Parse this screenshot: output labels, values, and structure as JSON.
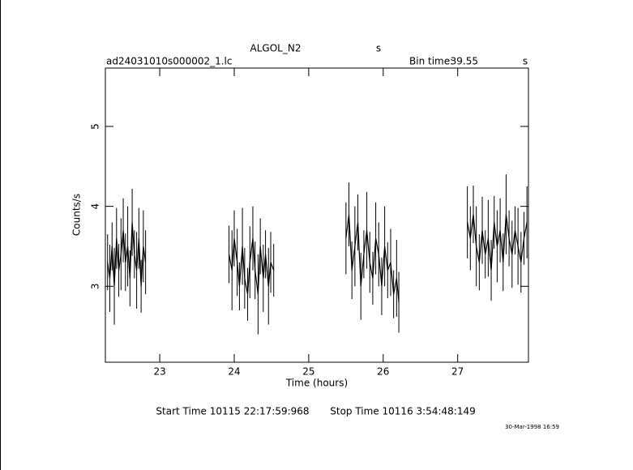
{
  "chart_data": {
    "type": "errorbar",
    "title": "ALGOL_N2",
    "title_unit": "s",
    "file_name": "ad24031010s000002_1.lc",
    "bin_time_label": "Bin time:",
    "bin_time": 39.55,
    "bin_time_unit": "s",
    "x_label": "Time (hours)",
    "y_label": "Counts/s",
    "start_time": "Start Time 10115 22:17:59:968",
    "stop_time": "Stop Time 10116  3:54:48:149",
    "date_stamp": "30-Mar-1998 16:59",
    "color": "#000000",
    "xlim": [
      22.27,
      27.95
    ],
    "ylim": [
      2.05,
      5.73
    ],
    "xticks": [
      23,
      24,
      25,
      26,
      27
    ],
    "yticks": [
      3,
      4,
      5
    ],
    "x": [
      22.3,
      22.33,
      22.36,
      22.39,
      22.42,
      22.45,
      22.48,
      22.51,
      22.54,
      22.57,
      22.6,
      22.63,
      22.66,
      22.69,
      22.72,
      22.75,
      22.78,
      22.81,
      null,
      23.93,
      23.97,
      24.0,
      24.04,
      24.07,
      24.11,
      24.14,
      24.18,
      24.21,
      24.25,
      24.28,
      24.32,
      24.35,
      24.39,
      24.42,
      24.46,
      24.49,
      24.53,
      null,
      25.5,
      25.54,
      25.58,
      25.62,
      25.66,
      25.7,
      25.74,
      25.78,
      25.82,
      25.86,
      25.9,
      25.94,
      25.98,
      26.02,
      26.06,
      26.1,
      26.14,
      26.18,
      26.21,
      null,
      27.13,
      27.17,
      27.21,
      27.25,
      27.29,
      27.33,
      27.37,
      27.41,
      27.45,
      27.49,
      27.53,
      27.57,
      27.61,
      27.65,
      27.69,
      27.73,
      27.77,
      27.81,
      27.85,
      27.89,
      27.93
    ],
    "values": [
      3.3,
      3.1,
      3.5,
      3.0,
      3.6,
      3.2,
      3.4,
      3.7,
      3.3,
      3.5,
      3.1,
      3.8,
      3.4,
      3.2,
      3.6,
      3.0,
      3.5,
      3.3,
      null,
      3.4,
      3.2,
      3.6,
      3.3,
      3.0,
      3.5,
      3.1,
      2.9,
      3.3,
      3.6,
      3.2,
      2.9,
      3.5,
      3.1,
      3.4,
      3.0,
      3.3,
      3.2,
      null,
      3.6,
      3.9,
      3.2,
      3.5,
      3.8,
      3.0,
      3.4,
      3.7,
      3.3,
      3.1,
      3.6,
      3.4,
      3.0,
      3.5,
      3.2,
      3.3,
      2.9,
      3.1,
      2.8,
      null,
      3.8,
      3.6,
      3.9,
      3.5,
      3.3,
      3.7,
      3.4,
      3.6,
      3.2,
      3.8,
      3.5,
      3.7,
      3.3,
      3.9,
      3.6,
      3.4,
      3.7,
      3.5,
      3.3,
      3.6,
      3.8
    ],
    "errors": [
      0.35,
      0.42,
      0.3,
      0.48,
      0.38,
      0.33,
      0.45,
      0.4,
      0.36,
      0.5,
      0.35,
      0.42,
      0.3,
      0.48,
      0.38,
      0.33,
      0.45,
      0.4,
      null,
      0.36,
      0.5,
      0.35,
      0.42,
      0.3,
      0.48,
      0.38,
      0.33,
      0.45,
      0.4,
      0.36,
      0.5,
      0.35,
      0.42,
      0.3,
      0.48,
      0.38,
      0.33,
      null,
      0.45,
      0.4,
      0.36,
      0.5,
      0.35,
      0.42,
      0.3,
      0.48,
      0.38,
      0.33,
      0.45,
      0.4,
      0.36,
      0.5,
      0.35,
      0.42,
      0.3,
      0.48,
      0.38,
      null,
      0.45,
      0.4,
      0.36,
      0.5,
      0.35,
      0.42,
      0.3,
      0.48,
      0.38,
      0.33,
      0.45,
      0.4,
      0.36,
      0.5,
      0.35,
      0.42,
      0.3,
      0.48,
      0.38,
      0.33,
      0.45
    ]
  }
}
